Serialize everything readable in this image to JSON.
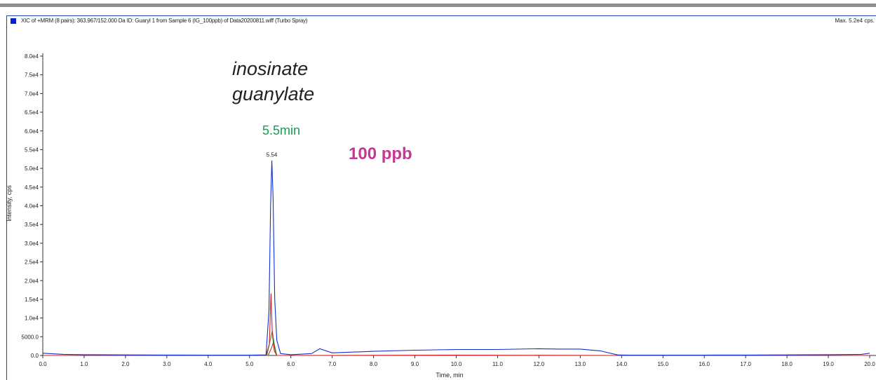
{
  "header": {
    "title": "XIC of +MRM (8 pairs): 363.967/152.000 Da ID: Guaryl 1 from Sample 6 (IG_100ppb) of Data20200811.wiff (Turbo Spray)",
    "max_label": "Max. 5.2e4 cps.",
    "swatch_color": "#0a1fcf"
  },
  "annotations": {
    "line1": "inosinate",
    "line2": "guanylate",
    "retention": "5.5min",
    "concentration": "100 ppb",
    "retention_color": "#1b9a56",
    "concentration_color": "#c43a93"
  },
  "chart_data": {
    "type": "line",
    "xlabel": "Time, min",
    "ylabel": "Intensity, cps",
    "xlim": [
      0.0,
      20.0
    ],
    "ylim": [
      0,
      80000
    ],
    "x_ticks": [
      "0.0",
      "1.0",
      "2.0",
      "3.0",
      "4.0",
      "5.0",
      "6.0",
      "7.0",
      "8.0",
      "9.0",
      "10.0",
      "11.0",
      "12.0",
      "13.0",
      "14.0",
      "15.0",
      "16.0",
      "17.0",
      "18.0",
      "19.0",
      "20.0"
    ],
    "y_ticks": [
      "0.0",
      "5000.0",
      "1.0e4",
      "1.5e4",
      "2.0e4",
      "2.5e4",
      "3.0e4",
      "3.5e4",
      "4.0e4",
      "4.5e4",
      "5.0e4",
      "5.5e4",
      "6.0e4",
      "6.5e4",
      "7.0e4",
      "7.5e4",
      "8.0e4"
    ],
    "peak_label": "5.54",
    "grid": false,
    "series": [
      {
        "color": "#1030d0",
        "x": [
          0.0,
          0.5,
          1.0,
          2.0,
          3.0,
          4.0,
          5.0,
          5.4,
          5.47,
          5.51,
          5.54,
          5.57,
          5.61,
          5.66,
          5.75,
          6.0,
          6.5,
          6.7,
          7.0,
          8.0,
          9.0,
          10.0,
          11.0,
          12.0,
          12.5,
          13.0,
          13.5,
          13.9,
          14.2,
          15.0,
          16.0,
          17.0,
          18.0,
          19.0,
          19.8,
          20.0
        ],
        "y": [
          600,
          300,
          200,
          150,
          120,
          100,
          100,
          150,
          12000,
          40000,
          52000,
          42000,
          15000,
          4000,
          500,
          200,
          500,
          1800,
          700,
          1100,
          1400,
          1600,
          1600,
          1800,
          1700,
          1700,
          1200,
          150,
          80,
          100,
          100,
          120,
          150,
          200,
          300,
          600
        ]
      },
      {
        "color": "#d02020",
        "x": [
          0.0,
          5.4,
          5.48,
          5.52,
          5.55,
          5.6,
          5.66,
          6.0,
          10.0,
          14.0,
          20.0
        ],
        "y": [
          0,
          0,
          3000,
          16500,
          6000,
          1200,
          0,
          0,
          100,
          0,
          0
        ]
      },
      {
        "color": "#20a040",
        "x": [
          0.0,
          5.42,
          5.5,
          5.55,
          5.6,
          5.66,
          6.0,
          20.0
        ],
        "y": [
          0,
          0,
          4000,
          6500,
          3000,
          0,
          0,
          0
        ]
      },
      {
        "color": "#a04020",
        "x": [
          0.0,
          5.45,
          5.53,
          5.58,
          5.65,
          6.0,
          20.0
        ],
        "y": [
          0,
          0,
          2000,
          3500,
          0,
          0,
          0
        ]
      }
    ]
  }
}
